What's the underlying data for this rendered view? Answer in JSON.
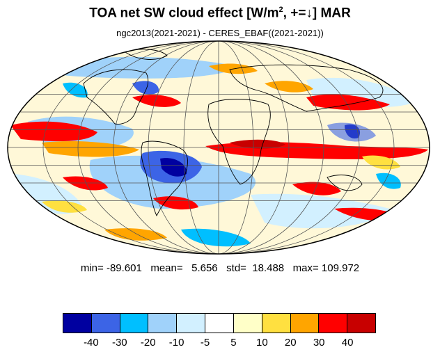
{
  "title": {
    "text": "TOA net SW cloud effect [W/m",
    "superscript": "2",
    "suffix": ", +=↓]  MAR"
  },
  "subtitle": "ngc2013(2021-2021) - CERES_EBAF((2021-2021))",
  "stats": {
    "line": "min= -89.601   mean=   5.656   std=  18.488   max= 109.972"
  },
  "colorbar": {
    "colors": [
      "#0000a0",
      "#3c64e6",
      "#00bfff",
      "#a0d2fa",
      "#d2f0ff",
      "#ffffff",
      "#ffffc8",
      "#ffe040",
      "#ffa500",
      "#ff0000",
      "#c80000"
    ],
    "labels": [
      "-40",
      "-30",
      "-20",
      "-10",
      "-5",
      "5",
      "10",
      "20",
      "30",
      "40"
    ]
  },
  "map": {
    "projection": "mollweide",
    "graticule_interval_deg": 30
  }
}
